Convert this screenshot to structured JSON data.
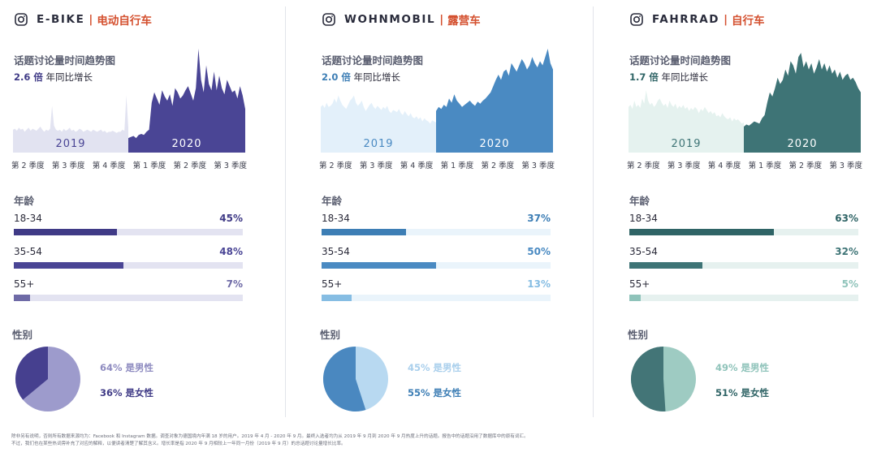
{
  "panels": [
    {
      "brand": "E-BIKE",
      "separator": "|",
      "brand_zh": "电动自行车",
      "trend_title": "话题讨论量时间趋势图",
      "growth_value": "2.6 倍",
      "growth_text": "年同比增长",
      "colors": {
        "accent": "#3f3a86",
        "mid": "#4a4595",
        "light": "#6e6aa6",
        "pie_a": "#46408f",
        "pie_b": "#9d9bcc",
        "track": "#e3e3f1",
        "area_2019": "#e2e3f1"
      },
      "age_title": "年龄",
      "gender_title": "性别",
      "age_groups": [
        {
          "label": "18-34",
          "value": 45,
          "display": "45%"
        },
        {
          "label": "35-54",
          "value": 48,
          "display": "48%"
        },
        {
          "label": "55+",
          "value": 7,
          "display": "7%"
        }
      ],
      "gender": {
        "male": 64,
        "female": 36,
        "male_label": "64% 是男性",
        "female_label": "36% 是女性",
        "male_color": "#9d9bcc",
        "female_color": "#46408f",
        "male_text_color": "#8e8bc0",
        "female_text_color": "#3f3a86"
      }
    },
    {
      "brand": "WOHNMOBIL",
      "separator": "|",
      "brand_zh": "露营车",
      "trend_title": "话题讨论量时间趋势图",
      "growth_value": "2.0 倍",
      "growth_text": "年同比增长",
      "colors": {
        "accent": "#3d7eb5",
        "mid": "#4a8ac2",
        "light": "#86bde3",
        "pie_a": "#4a88c0",
        "pie_b": "#b8d9f1",
        "track": "#eaf4fb",
        "area_2019": "#e3f0fa"
      },
      "age_title": "年龄",
      "gender_title": "性别",
      "age_groups": [
        {
          "label": "18-34",
          "value": 37,
          "display": "37%"
        },
        {
          "label": "35-54",
          "value": 50,
          "display": "50%"
        },
        {
          "label": "55+",
          "value": 13,
          "display": "13%"
        }
      ],
      "gender": {
        "male": 45,
        "female": 55,
        "male_label": "45% 是男性",
        "female_label": "55% 是女性",
        "male_color": "#b8d9f1",
        "female_color": "#4a88c0",
        "male_text_color": "#a9cfec",
        "female_text_color": "#3d7eb5"
      }
    },
    {
      "brand": "FAHRRAD",
      "separator": "|",
      "brand_zh": "自行车",
      "trend_title": "话题讨论量时间趋势图",
      "growth_value": "1.7 倍",
      "growth_text": "年同比增长",
      "colors": {
        "accent": "#2f6466",
        "mid": "#3e7476",
        "light": "#8fc3ba",
        "pie_a": "#437577",
        "pie_b": "#9ecbc2",
        "track": "#e6f1ef",
        "area_2019": "#e5f2ef"
      },
      "age_title": "年龄",
      "gender_title": "性别",
      "age_groups": [
        {
          "label": "18-34",
          "value": 63,
          "display": "63%"
        },
        {
          "label": "35-54",
          "value": 32,
          "display": "32%"
        },
        {
          "label": "55+",
          "value": 5,
          "display": "5%"
        }
      ],
      "gender": {
        "male": 49,
        "female": 51,
        "male_label": "49% 是男性",
        "female_label": "51% 是女性",
        "male_color": "#9ecbc2",
        "female_color": "#437577",
        "male_text_color": "#8fc3ba",
        "female_text_color": "#2f6466"
      }
    }
  ],
  "brand_zh_color": "#d4502f",
  "chart_data": [
    {
      "type": "area",
      "title": "话题讨论量时间趋势图",
      "quarters": [
        "第 2 季度",
        "第 3 季度",
        "第 4 季度",
        "第 1 季度",
        "第 2 季度",
        "第 3 季度"
      ],
      "period_labels": [
        "2019",
        "2020"
      ],
      "ylim": [
        0,
        100
      ],
      "series_2019": [
        22,
        23,
        21,
        24,
        22,
        23,
        20,
        22,
        24,
        21,
        23,
        22,
        21,
        23,
        25,
        22,
        20,
        22,
        21,
        23,
        45,
        26,
        22,
        21,
        22,
        20,
        23,
        21,
        22,
        24,
        21,
        22,
        20,
        21,
        23,
        22,
        20,
        21,
        22,
        21,
        20,
        22,
        21,
        20,
        21,
        22,
        20,
        21,
        19,
        20,
        20,
        21,
        20,
        19,
        20,
        20,
        22,
        21,
        55,
        24
      ],
      "series_2020": [
        14,
        15,
        16,
        14,
        17,
        18,
        17,
        20,
        22,
        48,
        58,
        52,
        46,
        60,
        54,
        50,
        56,
        45,
        62,
        58,
        52,
        55,
        60,
        64,
        57,
        50,
        62,
        100,
        70,
        58,
        84,
        66,
        60,
        78,
        60,
        74,
        62,
        56,
        70,
        64,
        58,
        60,
        52,
        64,
        55,
        42
      ]
    },
    {
      "type": "area",
      "title": "话题讨论量时间趋势图",
      "quarters": [
        "第 2 季度",
        "第 3 季度",
        "第 4 季度",
        "第 1 季度",
        "第 2 季度",
        "第 3 季度"
      ],
      "period_labels": [
        "2019",
        "2020"
      ],
      "ylim": [
        0,
        100
      ],
      "series_2019": [
        44,
        46,
        43,
        48,
        44,
        45,
        47,
        52,
        48,
        55,
        50,
        46,
        44,
        42,
        46,
        50,
        52,
        55,
        48,
        45,
        47,
        50,
        44,
        40,
        43,
        46,
        48,
        44,
        42,
        45,
        43,
        41,
        44,
        42,
        45,
        40,
        38,
        41,
        40,
        39,
        42,
        38,
        36,
        40,
        37,
        35,
        38,
        34,
        33,
        35,
        32,
        34,
        30,
        33,
        31,
        30,
        28,
        31,
        30,
        29
      ],
      "series_2020": [
        40,
        44,
        42,
        46,
        44,
        52,
        48,
        56,
        50,
        47,
        44,
        46,
        48,
        50,
        47,
        45,
        49,
        47,
        50,
        52,
        55,
        58,
        64,
        70,
        75,
        70,
        78,
        80,
        74,
        86,
        82,
        78,
        84,
        90,
        86,
        80,
        84,
        92,
        86,
        82,
        88,
        84,
        92,
        100,
        86,
        80
      ]
    },
    {
      "type": "area",
      "title": "话题讨论量时间趋势图",
      "quarters": [
        "第 2 季度",
        "第 3 季度",
        "第 4 季度",
        "第 1 季度",
        "第 2 季度",
        "第 3 季度"
      ],
      "period_labels": [
        "2019",
        "2020"
      ],
      "ylim": [
        0,
        100
      ],
      "series_2019": [
        44,
        46,
        42,
        50,
        44,
        46,
        43,
        52,
        47,
        60,
        50,
        46,
        48,
        44,
        46,
        50,
        52,
        48,
        45,
        47,
        43,
        50,
        46,
        44,
        47,
        42,
        45,
        43,
        46,
        42,
        44,
        40,
        43,
        41,
        44,
        42,
        38,
        42,
        40,
        44,
        41,
        38,
        40,
        37,
        39,
        35,
        36,
        34,
        38,
        35,
        33,
        32,
        34,
        30,
        33,
        31,
        32,
        30,
        28,
        29
      ],
      "series_2020": [
        25,
        27,
        26,
        28,
        30,
        29,
        28,
        33,
        36,
        48,
        58,
        54,
        62,
        72,
        66,
        70,
        80,
        74,
        88,
        84,
        76,
        92,
        96,
        82,
        88,
        80,
        86,
        76,
        82,
        90,
        80,
        86,
        78,
        84,
        76,
        80,
        72,
        78,
        70,
        74,
        76,
        70,
        72,
        68,
        62,
        58
      ]
    }
  ],
  "footnote": [
    "除非另有说明，否则所有数据来源均为：Facebook 和 Instagram 数据。调查对象为德国境内年满 18 岁的用户。2019 年 4 月 - 2020 年 9 月。最终入选者均为从 2019 年 9 月到 2020 年 9 月热度上升的话题。报告中的话题沿用了数据库中的原有词汇。",
    "不过，我们也在某些热词旁补充了对应的解释，以便读者清楚了解其含义。增长率是指 2020 年 9 月相较上一年同一月份（2019 年 9 月）的总话题讨论量增长比率。"
  ]
}
